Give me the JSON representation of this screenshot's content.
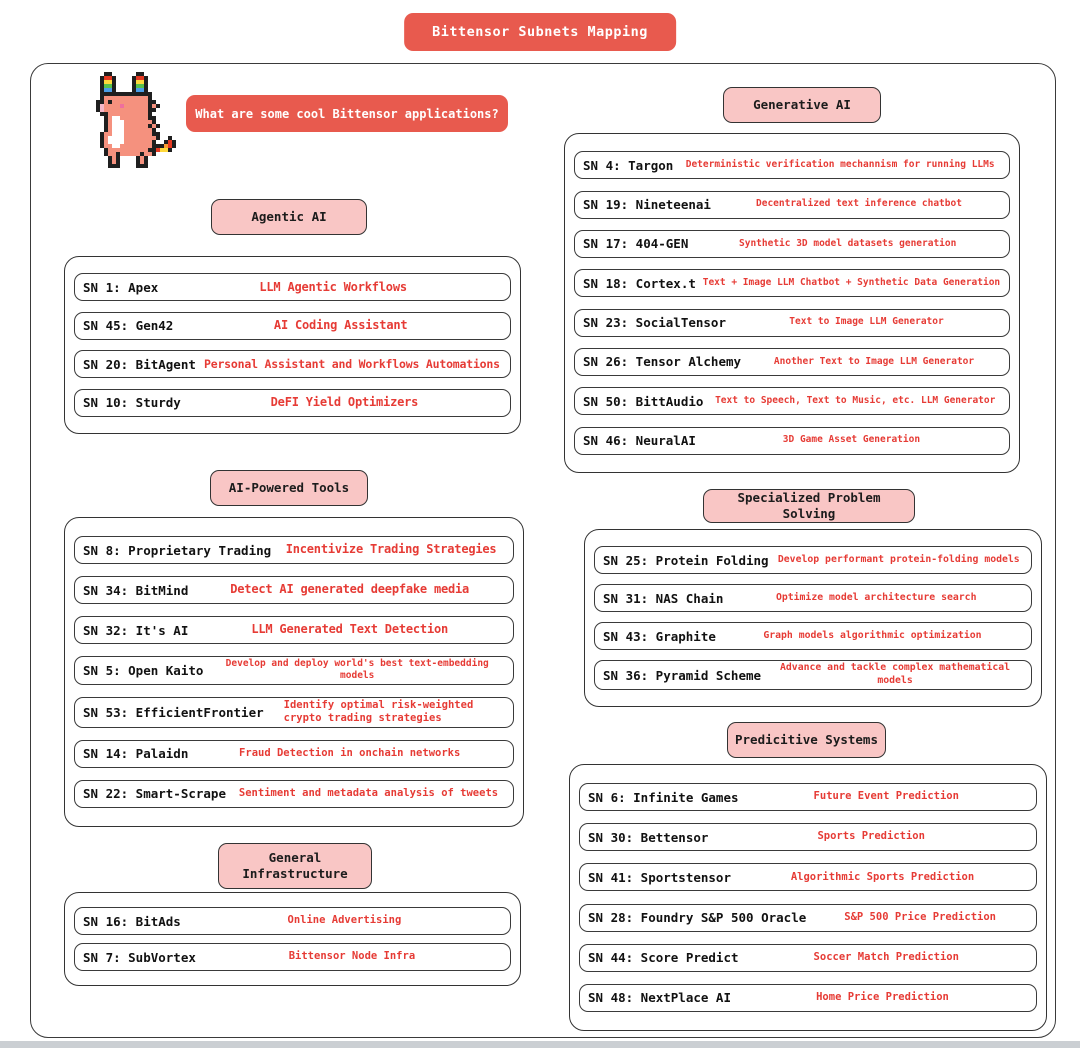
{
  "title": "Bittensor Subnets Mapping",
  "question_bubble": "What are some cool Bittensor applications?",
  "mascot_icon": "pixel-dragon-icon",
  "colors": {
    "accent_red": "#e85a4e",
    "badge_pink": "#f9c6c5",
    "description_red": "#e63b35",
    "outline_dark": "#333333"
  },
  "sections": [
    {
      "label": "Agentic AI",
      "items": [
        {
          "name": "SN 1: Apex",
          "desc": "LLM Agentic Workflows"
        },
        {
          "name": "SN 45: Gen42",
          "desc": "AI Coding Assistant"
        },
        {
          "name": "SN 20: BitAgent",
          "desc": "Personal Assistant and Workflows Automations"
        },
        {
          "name": "SN 10: Sturdy",
          "desc": "DeFI Yield Optimizers"
        }
      ]
    },
    {
      "label": "Generative AI",
      "items": [
        {
          "name": "SN 4: Targon",
          "desc": "Deterministic verification mechannism for running LLMs"
        },
        {
          "name": "SN 19: Nineteenai",
          "desc": "Decentralized text inference chatbot"
        },
        {
          "name": "SN 17: 404-GEN",
          "desc": "Synthetic 3D model datasets generation"
        },
        {
          "name": "SN 18: Cortex.t",
          "desc": "Text + Image LLM Chatbot + Synthetic Data Generation"
        },
        {
          "name": "SN 23: SocialTensor",
          "desc": "Text to Image LLM Generator"
        },
        {
          "name": "SN 26: Tensor Alchemy",
          "desc": "Another Text to Image LLM Generator"
        },
        {
          "name": "SN 50: BittAudio",
          "desc": "Text to Speech, Text to Music, etc. LLM Generator"
        },
        {
          "name": "SN 46: NeuralAI",
          "desc": "3D Game Asset Generation"
        }
      ]
    },
    {
      "label": "AI-Powered Tools",
      "items": [
        {
          "name": "SN 8: Proprietary Trading",
          "desc": "Incentivize Trading Strategies"
        },
        {
          "name": "SN 34: BitMind",
          "desc": "Detect AI generated deepfake media"
        },
        {
          "name": "SN 32: It's AI",
          "desc": "LLM Generated Text Detection"
        },
        {
          "name": "SN 5: Open Kaito",
          "desc": "Develop and deploy world's best text-embedding models"
        },
        {
          "name": "SN 53: EfficientFrontier",
          "desc": "Identify optimal risk-weighted crypto trading strategies"
        },
        {
          "name": "SN 14: Palaidn",
          "desc": "Fraud Detection in onchain networks"
        },
        {
          "name": "SN 22: Smart-Scrape",
          "desc": "Sentiment and metadata analysis of tweets"
        }
      ]
    },
    {
      "label": "Specialized Problem Solving",
      "items": [
        {
          "name": "SN 25: Protein Folding",
          "desc": "Develop performant protein-folding models"
        },
        {
          "name": "SN 31: NAS Chain",
          "desc": "Optimize model architecture search"
        },
        {
          "name": "SN 43: Graphite",
          "desc": "Graph models algorithmic optimization"
        },
        {
          "name": "SN 36: Pyramid Scheme",
          "desc": "Advance and tackle complex mathematical models"
        }
      ]
    },
    {
      "label": "General Infrastructure",
      "items": [
        {
          "name": "SN 16: BitAds",
          "desc": "Online Advertising"
        },
        {
          "name": "SN 7: SubVortex",
          "desc": "Bittensor Node Infra"
        }
      ]
    },
    {
      "label": "Predicitive Systems",
      "items": [
        {
          "name": "SN 6: Infinite Games",
          "desc": "Future Event Prediction"
        },
        {
          "name": "SN 30: Bettensor",
          "desc": "Sports Prediction"
        },
        {
          "name": "SN 41: Sportstensor",
          "desc": "Algorithmic Sports Prediction"
        },
        {
          "name": "SN 28: Foundry S&P 500 Oracle",
          "desc": "S&P 500 Price Prediction"
        },
        {
          "name": "SN 44: Score Predict",
          "desc": "Soccer Match Prediction"
        },
        {
          "name": "SN 48: NextPlace AI",
          "desc": "Home Price Prediction"
        }
      ]
    }
  ]
}
